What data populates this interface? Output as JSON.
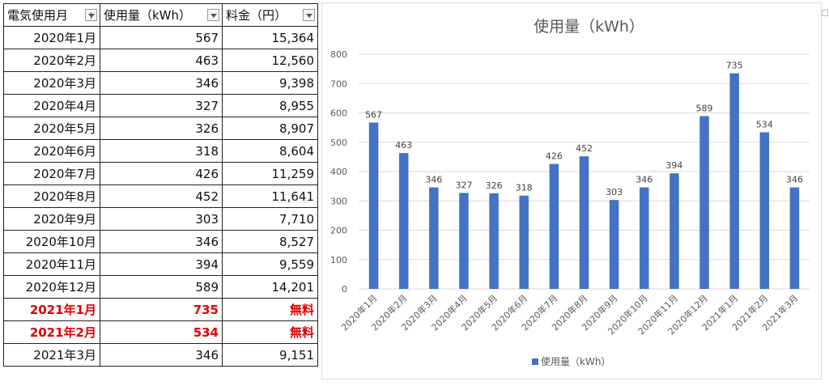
{
  "sheet": {
    "headers": [
      "電気使用月",
      "使用量（kWh）",
      "料金（円）"
    ],
    "rows": [
      {
        "month": "2020年1月",
        "usage": "567",
        "fee": "15,364",
        "highlight": false
      },
      {
        "month": "2020年2月",
        "usage": "463",
        "fee": "12,560",
        "highlight": false
      },
      {
        "month": "2020年3月",
        "usage": "346",
        "fee": "9,398",
        "highlight": false
      },
      {
        "month": "2020年4月",
        "usage": "327",
        "fee": "8,955",
        "highlight": false
      },
      {
        "month": "2020年5月",
        "usage": "326",
        "fee": "8,907",
        "highlight": false
      },
      {
        "month": "2020年6月",
        "usage": "318",
        "fee": "8,604",
        "highlight": false
      },
      {
        "month": "2020年7月",
        "usage": "426",
        "fee": "11,259",
        "highlight": false
      },
      {
        "month": "2020年8月",
        "usage": "452",
        "fee": "11,641",
        "highlight": false
      },
      {
        "month": "2020年9月",
        "usage": "303",
        "fee": "7,710",
        "highlight": false
      },
      {
        "month": "2020年10月",
        "usage": "346",
        "fee": "8,527",
        "highlight": false
      },
      {
        "month": "2020年11月",
        "usage": "394",
        "fee": "9,559",
        "highlight": false
      },
      {
        "month": "2020年12月",
        "usage": "589",
        "fee": "14,201",
        "highlight": false
      },
      {
        "month": "2021年1月",
        "usage": "735",
        "fee": "無料",
        "highlight": true
      },
      {
        "month": "2021年2月",
        "usage": "534",
        "fee": "無料",
        "highlight": true
      },
      {
        "month": "2021年3月",
        "usage": "346",
        "fee": "9,151",
        "highlight": false
      }
    ],
    "highlight_color": "#e00000"
  },
  "chart_data": {
    "type": "bar",
    "title": "使用量（kWh）",
    "categories": [
      "2020年1月",
      "2020年2月",
      "2020年3月",
      "2020年4月",
      "2020年5月",
      "2020年6月",
      "2020年7月",
      "2020年8月",
      "2020年9月",
      "2020年10月",
      "2020年11月",
      "2020年12月",
      "2021年1月",
      "2021年2月",
      "2021年3月"
    ],
    "series": [
      {
        "name": "使用量（kWh）",
        "values": [
          567,
          463,
          346,
          327,
          326,
          318,
          426,
          452,
          303,
          346,
          394,
          589,
          735,
          534,
          346
        ],
        "color": "#4472c4"
      }
    ],
    "ylim": [
      0,
      800
    ],
    "yticks": [
      0,
      100,
      200,
      300,
      400,
      500,
      600,
      700,
      800
    ],
    "grid": true,
    "legend": "bottom",
    "data_labels": true
  }
}
